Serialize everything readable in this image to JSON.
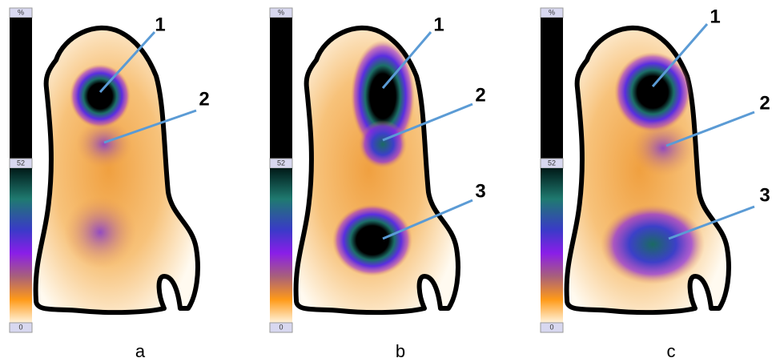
{
  "panels": [
    {
      "label": "a",
      "scale": {
        "top": "%",
        "mid": "52",
        "bottom": "0"
      },
      "annotations": [
        "1",
        "2"
      ]
    },
    {
      "label": "b",
      "scale": {
        "top": "%",
        "mid": "52",
        "bottom": "0"
      },
      "annotations": [
        "1",
        "2",
        "3"
      ]
    },
    {
      "label": "c",
      "scale": {
        "top": "%",
        "mid": "52",
        "bottom": "0"
      },
      "annotations": [
        "1",
        "2",
        "3"
      ]
    }
  ]
}
